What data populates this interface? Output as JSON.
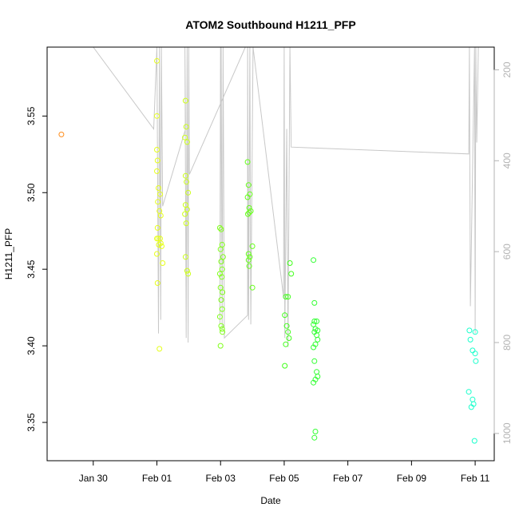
{
  "chart_data": {
    "type": "scatter",
    "title": "ATOM2 Southbound H1211_PFP",
    "xlabel": "Date",
    "ylabel": "H1211_PFP",
    "x_units": "days since 2016-01-30",
    "xlim": [
      -1.45,
      12.6
    ],
    "ylim": [
      3.325,
      3.595
    ],
    "x_ticks": [
      {
        "x": 0,
        "label": "Jan 30"
      },
      {
        "x": 2,
        "label": "Feb 01"
      },
      {
        "x": 4,
        "label": "Feb 03"
      },
      {
        "x": 6,
        "label": "Feb 05"
      },
      {
        "x": 8,
        "label": "Feb 07"
      },
      {
        "x": 10,
        "label": "Feb 09"
      },
      {
        "x": 12,
        "label": "Feb 11"
      }
    ],
    "y_ticks": [
      "3.35",
      "3.40",
      "3.45",
      "3.50",
      "3.55"
    ],
    "y_tick_values": [
      3.35,
      3.4,
      3.45,
      3.5,
      3.55
    ],
    "right_axis": {
      "label": "",
      "lim": [
        1060,
        150
      ],
      "ticks": [
        "200",
        "400",
        "600",
        "800",
        "1000"
      ],
      "tick_values": [
        200,
        400,
        600,
        800,
        1000
      ],
      "color": "#b3b3b3"
    },
    "series": [
      {
        "color": "#ff8c1a",
        "points": [
          [
            -1.0,
            3.538
          ]
        ]
      },
      {
        "color": "#e6ff1a",
        "points": [
          [
            2.0,
            3.586
          ],
          [
            2.0,
            3.55
          ],
          [
            2.0,
            3.528
          ],
          [
            2.02,
            3.521
          ],
          [
            2.0,
            3.514
          ],
          [
            2.05,
            3.503
          ],
          [
            2.1,
            3.499
          ],
          [
            2.03,
            3.494
          ],
          [
            2.08,
            3.488
          ],
          [
            2.12,
            3.485
          ],
          [
            2.02,
            3.477
          ],
          [
            2.0,
            3.47
          ],
          [
            2.04,
            3.47
          ],
          [
            2.1,
            3.47
          ],
          [
            2.12,
            3.467
          ],
          [
            2.06,
            3.466
          ],
          [
            2.15,
            3.465
          ],
          [
            2.0,
            3.46
          ],
          [
            2.18,
            3.454
          ],
          [
            2.02,
            3.441
          ],
          [
            2.08,
            3.398
          ]
        ]
      },
      {
        "color": "#ccff1a",
        "points": [
          [
            2.9,
            3.56
          ],
          [
            2.92,
            3.543
          ],
          [
            2.88,
            3.536
          ],
          [
            2.95,
            3.533
          ],
          [
            2.9,
            3.511
          ],
          [
            2.93,
            3.507
          ],
          [
            2.98,
            3.5
          ],
          [
            2.9,
            3.492
          ],
          [
            2.95,
            3.489
          ],
          [
            2.88,
            3.486
          ],
          [
            2.92,
            3.48
          ],
          [
            2.9,
            3.458
          ],
          [
            2.95,
            3.449
          ],
          [
            2.98,
            3.447
          ]
        ]
      },
      {
        "color": "#80ff1a",
        "points": [
          [
            3.98,
            3.477
          ],
          [
            4.02,
            3.476
          ],
          [
            4.05,
            3.466
          ],
          [
            4.0,
            3.463
          ],
          [
            4.08,
            3.458
          ],
          [
            4.02,
            3.455
          ],
          [
            4.05,
            3.45
          ],
          [
            3.98,
            3.447
          ],
          [
            4.04,
            3.445
          ],
          [
            4.0,
            3.438
          ],
          [
            4.06,
            3.435
          ],
          [
            4.02,
            3.43
          ],
          [
            4.05,
            3.424
          ],
          [
            3.98,
            3.419
          ],
          [
            4.02,
            3.413
          ],
          [
            4.05,
            3.411
          ],
          [
            4.06,
            3.409
          ],
          [
            4.0,
            3.4
          ]
        ]
      },
      {
        "color": "#66ff1a",
        "points": [
          [
            4.85,
            3.52
          ],
          [
            4.88,
            3.505
          ],
          [
            4.92,
            3.499
          ],
          [
            4.85,
            3.497
          ],
          [
            4.9,
            3.49
          ],
          [
            4.95,
            3.488
          ],
          [
            4.86,
            3.486
          ],
          [
            4.9,
            3.487
          ],
          [
            5.0,
            3.465
          ],
          [
            4.88,
            3.46
          ],
          [
            4.92,
            3.458
          ],
          [
            4.9,
            3.452
          ],
          [
            5.0,
            3.438
          ],
          [
            4.88,
            3.456
          ]
        ]
      },
      {
        "color": "#40ff1a",
        "points": [
          [
            6.05,
            3.432
          ],
          [
            6.12,
            3.432
          ],
          [
            6.18,
            3.454
          ],
          [
            6.22,
            3.447
          ],
          [
            6.02,
            3.42
          ],
          [
            6.08,
            3.413
          ],
          [
            6.12,
            3.409
          ],
          [
            6.15,
            3.405
          ],
          [
            6.05,
            3.401
          ],
          [
            6.02,
            3.387
          ]
        ]
      },
      {
        "color": "#33ff33",
        "points": [
          [
            6.92,
            3.456
          ],
          [
            6.95,
            3.428
          ],
          [
            6.95,
            3.416
          ],
          [
            7.02,
            3.416
          ],
          [
            6.92,
            3.414
          ],
          [
            6.98,
            3.411
          ],
          [
            7.05,
            3.41
          ],
          [
            6.95,
            3.409
          ],
          [
            7.02,
            3.407
          ],
          [
            7.05,
            3.404
          ],
          [
            6.98,
            3.401
          ],
          [
            6.92,
            3.399
          ],
          [
            6.95,
            3.39
          ],
          [
            7.02,
            3.383
          ],
          [
            7.05,
            3.38
          ],
          [
            6.98,
            3.378
          ],
          [
            6.92,
            3.376
          ],
          [
            6.98,
            3.344
          ],
          [
            6.95,
            3.34
          ]
        ]
      },
      {
        "color": "#1affcc",
        "points": [
          [
            11.82,
            3.41
          ],
          [
            12.0,
            3.409
          ],
          [
            11.85,
            3.404
          ],
          [
            11.92,
            3.397
          ],
          [
            12.0,
            3.395
          ],
          [
            12.02,
            3.39
          ],
          [
            11.8,
            3.37
          ],
          [
            11.92,
            3.365
          ],
          [
            11.95,
            3.362
          ],
          [
            11.88,
            3.36
          ],
          [
            11.98,
            3.338
          ]
        ]
      }
    ],
    "profile_line": {
      "color": "#c8c8c8",
      "points": [
        [
          0.0,
          150
        ],
        [
          1.9,
          330
        ],
        [
          2.0,
          150
        ],
        [
          2.05,
          780
        ],
        [
          2.08,
          150
        ],
        [
          2.12,
          750
        ],
        [
          2.14,
          150
        ],
        [
          2.18,
          500
        ],
        [
          2.9,
          330
        ],
        [
          2.88,
          150
        ],
        [
          2.92,
          790
        ],
        [
          2.95,
          150
        ],
        [
          2.98,
          800
        ],
        [
          3.0,
          150
        ],
        [
          3.02,
          430
        ],
        [
          4.78,
          125
        ],
        [
          4.0,
          125
        ],
        [
          3.98,
          760
        ],
        [
          4.02,
          125
        ],
        [
          4.05,
          770
        ],
        [
          4.08,
          125
        ],
        [
          4.12,
          790
        ],
        [
          4.85,
          740
        ],
        [
          4.85,
          125
        ],
        [
          4.88,
          750
        ],
        [
          4.92,
          125
        ],
        [
          4.95,
          760
        ],
        [
          5.02,
          125
        ],
        [
          5.98,
          700
        ],
        [
          6.0,
          125
        ],
        [
          6.02,
          790
        ],
        [
          6.08,
          330
        ],
        [
          6.12,
          810
        ],
        [
          6.18,
          125
        ],
        [
          6.22,
          370
        ],
        [
          11.8,
          385
        ],
        [
          11.82,
          125
        ],
        [
          11.85,
          720
        ],
        [
          11.98,
          125
        ],
        [
          12.0,
          780
        ],
        [
          12.02,
          125
        ],
        [
          12.05,
          360
        ],
        [
          12.1,
          125
        ]
      ]
    }
  }
}
